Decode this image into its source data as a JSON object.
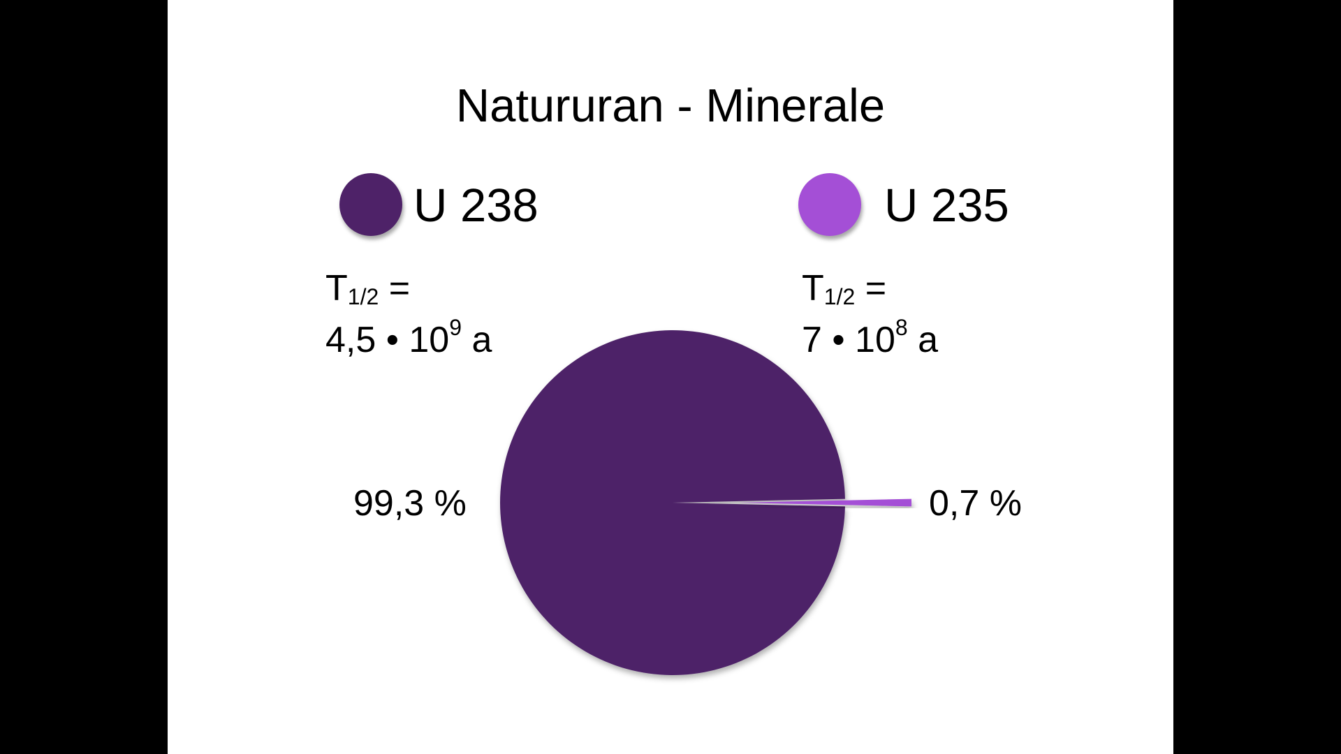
{
  "chart_data": {
    "type": "pie",
    "title": "Natururan - Minerale",
    "slices": [
      {
        "name": "U 238",
        "value": 99.3,
        "value_label": "99,3 %",
        "color": "#4e2268",
        "halflife_prefix": "T",
        "halflife_sub": "1/2",
        "halflife_eq": " =",
        "halflife_mantissa": "4,5 • 10",
        "halflife_exp": "9",
        "halflife_unit": " a"
      },
      {
        "name": "U 235",
        "value": 0.7,
        "value_label": "0,7 %",
        "color": "#a44fd6",
        "exploded": true,
        "halflife_prefix": "T",
        "halflife_sub": "1/2",
        "halflife_eq": " =",
        "halflife_mantissa": "7 • 10",
        "halflife_exp": "8",
        "halflife_unit": " a"
      }
    ],
    "legend_position": "top"
  }
}
